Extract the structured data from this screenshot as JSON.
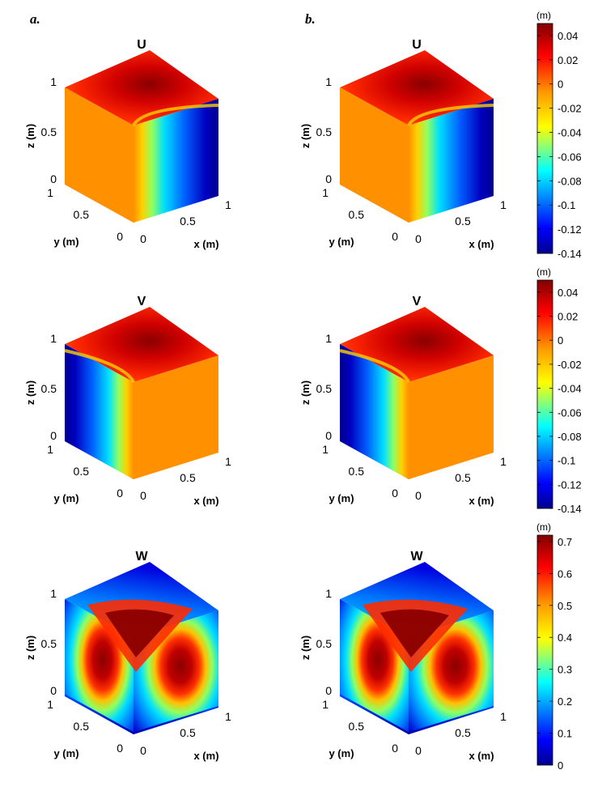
{
  "panel_labels": [
    "a.",
    "b."
  ],
  "colormap": [
    "#00008f",
    "#0000ff",
    "#0080ff",
    "#00ffff",
    "#80ff80",
    "#ffff00",
    "#ff8000",
    "#ff0000",
    "#800000"
  ],
  "chart_data": [
    {
      "type": "heatmap",
      "title": "U",
      "column": "a.",
      "xlabel": "x (m)",
      "ylabel": "y (m)",
      "zlabel": "z (m)",
      "xticks": [
        "0",
        "0.5",
        "1"
      ],
      "yticks": [
        "0",
        "0.5",
        "1"
      ],
      "zticks": [
        "0",
        "0.5",
        "1"
      ],
      "xlim": [
        0,
        1
      ],
      "ylim": [
        0,
        1
      ],
      "zlim": [
        0,
        1
      ],
      "clim": [
        -0.14,
        0.05
      ],
      "faces": {
        "top": "red, dark red maximum near the x=1, y=0.5 corner region",
        "left": "uniform orange (~0)",
        "right": "dark blue (-0.14) toward x=1 low z, orange toward x=0"
      }
    },
    {
      "type": "heatmap",
      "title": "U",
      "column": "b.",
      "xlabel": "x (m)",
      "ylabel": "y (m)",
      "zlabel": "z (m)",
      "xticks": [
        "0",
        "0.5",
        "1"
      ],
      "yticks": [
        "0",
        "0.5",
        "1"
      ],
      "zticks": [
        "0",
        "0.5",
        "1"
      ],
      "xlim": [
        0,
        1
      ],
      "ylim": [
        0,
        1
      ],
      "zlim": [
        0,
        1
      ],
      "clim": [
        -0.14,
        0.05
      ]
    },
    {
      "type": "heatmap",
      "title": "V",
      "column": "a.",
      "xlabel": "x (m)",
      "ylabel": "y (m)",
      "zlabel": "z (m)",
      "xticks": [
        "0",
        "0.5",
        "1"
      ],
      "yticks": [
        "0",
        "0.5",
        "1"
      ],
      "zticks": [
        "0",
        "0.5",
        "1"
      ],
      "xlim": [
        0,
        1
      ],
      "ylim": [
        0,
        1
      ],
      "zlim": [
        0,
        1
      ],
      "clim": [
        -0.14,
        0.05
      ]
    },
    {
      "type": "heatmap",
      "title": "V",
      "column": "b.",
      "xlabel": "x (m)",
      "ylabel": "y (m)",
      "zlabel": "z (m)",
      "xticks": [
        "0",
        "0.5",
        "1"
      ],
      "yticks": [
        "0",
        "0.5",
        "1"
      ],
      "zticks": [
        "0",
        "0.5",
        "1"
      ],
      "xlim": [
        0,
        1
      ],
      "ylim": [
        0,
        1
      ],
      "zlim": [
        0,
        1
      ],
      "clim": [
        -0.14,
        0.05
      ]
    },
    {
      "type": "heatmap",
      "title": "W",
      "column": "a.",
      "xlabel": "x (m)",
      "ylabel": "y (m)",
      "zlabel": "z (m)",
      "xticks": [
        "0",
        "0.5",
        "1"
      ],
      "yticks": [
        "0",
        "0.5",
        "1"
      ],
      "zticks": [
        "0",
        "0.5",
        "1"
      ],
      "xlim": [
        0,
        1
      ],
      "ylim": [
        0,
        1
      ],
      "zlim": [
        0,
        1
      ],
      "clim": [
        0,
        0.72
      ]
    },
    {
      "type": "heatmap",
      "title": "W",
      "column": "b.",
      "xlabel": "x (m)",
      "ylabel": "y (m)",
      "zlabel": "z (m)",
      "xticks": [
        "0",
        "0.5",
        "1"
      ],
      "yticks": [
        "0",
        "0.5",
        "1"
      ],
      "zticks": [
        "0",
        "0.5",
        "1"
      ],
      "xlim": [
        0,
        1
      ],
      "ylim": [
        0,
        1
      ],
      "zlim": [
        0,
        1
      ],
      "clim": [
        0,
        0.72
      ]
    }
  ],
  "colorbars": [
    {
      "unit": "(m)",
      "min": -0.14,
      "max": 0.05,
      "ticks": [
        0.04,
        0.02,
        0,
        -0.02,
        -0.04,
        -0.06,
        -0.08,
        -0.1,
        -0.12,
        -0.14
      ],
      "tick_labels": [
        "0.04",
        "0.02",
        "0",
        "-0.02",
        "-0.04",
        "-0.06",
        "-0.08",
        "-0.1",
        "-0.12",
        "-0.14"
      ]
    },
    {
      "unit": "(m)",
      "min": -0.14,
      "max": 0.05,
      "ticks": [
        0.04,
        0.02,
        0,
        -0.02,
        -0.04,
        -0.06,
        -0.08,
        -0.1,
        -0.12,
        -0.14
      ],
      "tick_labels": [
        "0.04",
        "0.02",
        "0",
        "-0.02",
        "-0.04",
        "-0.06",
        "-0.08",
        "-0.1",
        "-0.12",
        "-0.14"
      ]
    },
    {
      "unit": "(m)",
      "min": 0,
      "max": 0.72,
      "ticks": [
        0.7,
        0.6,
        0.5,
        0.4,
        0.3,
        0.2,
        0.1,
        0
      ],
      "tick_labels": [
        "0.7",
        "0.6",
        "0.5",
        "0.4",
        "0.3",
        "0.2",
        "0.1",
        "0"
      ]
    }
  ]
}
